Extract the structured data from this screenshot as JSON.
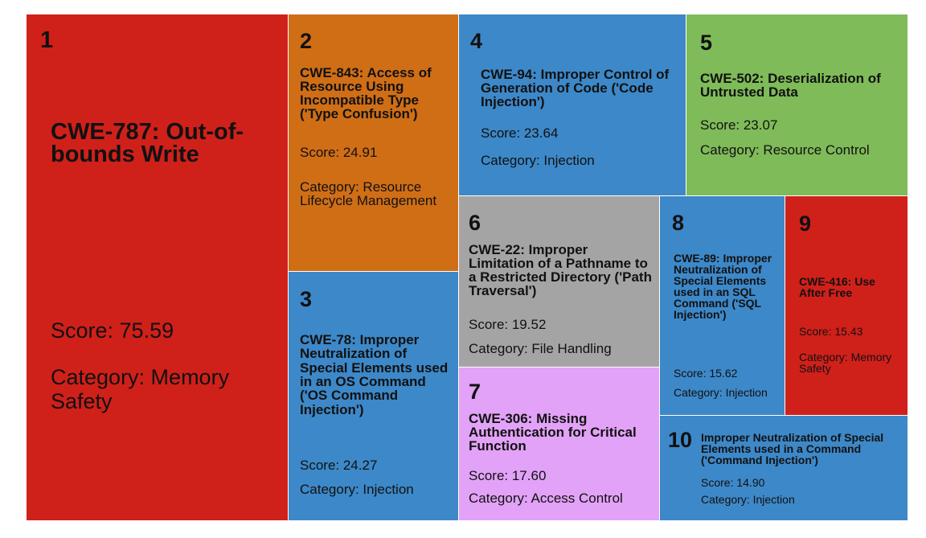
{
  "chart_data": {
    "type": "treemap",
    "items": [
      {
        "rank": "1",
        "name": "CWE-787: Out-of-bounds Write",
        "score": 75.59,
        "score_label": "Score: 75.59",
        "category": "Category: Memory Safety",
        "color": "#d0201a"
      },
      {
        "rank": "2",
        "name": "CWE-843: Access of Resource Using Incompatible Type ('Type Confusion')",
        "score": 24.91,
        "score_label": "Score: 24.91",
        "category": "Category: Resource Lifecycle Management",
        "color": "#d06e16"
      },
      {
        "rank": "3",
        "name": "CWE-78: Improper Neutralization of Special Elements used in an OS Command ('OS Command Injection')",
        "score": 24.27,
        "score_label": "Score: 24.27",
        "category": "Category: Injection",
        "color": "#3d88c8"
      },
      {
        "rank": "4",
        "name": "CWE-94: Improper Control of Generation of Code ('Code Injection')",
        "score": 23.64,
        "score_label": "Score: 23.64",
        "category": "Category: Injection",
        "color": "#3d88c8"
      },
      {
        "rank": "5",
        "name": "CWE-502: Deserialization of Untrusted Data",
        "score": 23.07,
        "score_label": "Score: 23.07",
        "category": "Category: Resource Control",
        "color": "#7fbb59"
      },
      {
        "rank": "6",
        "name": "CWE-22: Improper Limitation of a Pathname to a Restricted Directory ('Path Traversal')",
        "score": 19.52,
        "score_label": "Score: 19.52",
        "category": "Category: File Handling",
        "color": "#a4a4a4"
      },
      {
        "rank": "7",
        "name": "CWE-306: Missing Authentication for Critical Function",
        "score": 17.6,
        "score_label": "Score: 17.60",
        "category": "Category: Access Control",
        "color": "#e2a2f7"
      },
      {
        "rank": "8",
        "name": "CWE-89: Improper Neutralization of Special Elements used in an SQL Command ('SQL Injection')",
        "score": 15.62,
        "score_label": "Score: 15.62",
        "category": "Category: Injection",
        "color": "#3d88c8"
      },
      {
        "rank": "9",
        "name": "CWE-416: Use After Free",
        "score": 15.43,
        "score_label": "Score: 15.43",
        "category": "Category: Memory Safety",
        "color": "#d0201a"
      },
      {
        "rank": "10",
        "name": "Improper Neutralization of Special Elements used in a Command ('Command Injection')",
        "score": 14.9,
        "score_label": "Score: 14.90",
        "category": "Category: Injection",
        "color": "#3d88c8"
      }
    ]
  }
}
